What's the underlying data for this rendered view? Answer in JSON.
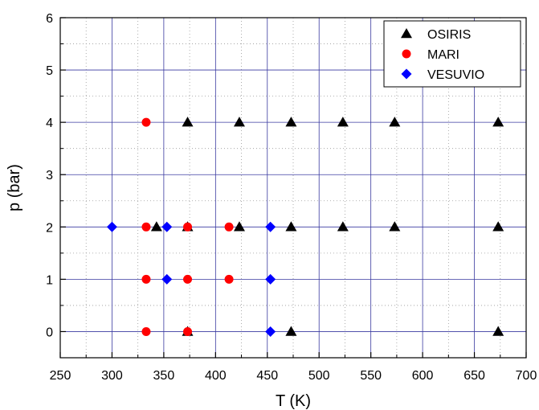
{
  "chart_data": {
    "type": "scatter",
    "xlabel": "T (K)",
    "ylabel": "p (bar)",
    "xlim": [
      250,
      700
    ],
    "ylim": [
      -0.5,
      6
    ],
    "xticks": [
      250,
      300,
      350,
      400,
      450,
      500,
      550,
      600,
      650,
      700
    ],
    "yticks": [
      0,
      1,
      2,
      3,
      4,
      5,
      6
    ],
    "x_minor_step": 25,
    "y_minor_step": 0.5,
    "grid": true,
    "legend_position": "top-right",
    "series": [
      {
        "name": "OSIRIS",
        "marker": "triangle",
        "color": "#000000",
        "points": [
          [
            373,
            4
          ],
          [
            423,
            4
          ],
          [
            473,
            4
          ],
          [
            523,
            4
          ],
          [
            573,
            4
          ],
          [
            673,
            4
          ],
          [
            343,
            2
          ],
          [
            373,
            2
          ],
          [
            423,
            2
          ],
          [
            473,
            2
          ],
          [
            523,
            2
          ],
          [
            573,
            2
          ],
          [
            673,
            2
          ],
          [
            373,
            0
          ],
          [
            473,
            0
          ],
          [
            673,
            0
          ]
        ]
      },
      {
        "name": "MARI",
        "marker": "circle",
        "color": "#ff0000",
        "points": [
          [
            333,
            4
          ],
          [
            333,
            2
          ],
          [
            373,
            2
          ],
          [
            413,
            2
          ],
          [
            333,
            1
          ],
          [
            373,
            1
          ],
          [
            413,
            1
          ],
          [
            333,
            0
          ],
          [
            373,
            0
          ]
        ]
      },
      {
        "name": "VESUVIO",
        "marker": "diamond",
        "color": "#0000ff",
        "points": [
          [
            300,
            2
          ],
          [
            353,
            2
          ],
          [
            453,
            2
          ],
          [
            353,
            1
          ],
          [
            453,
            1
          ],
          [
            453,
            0
          ]
        ]
      }
    ]
  }
}
